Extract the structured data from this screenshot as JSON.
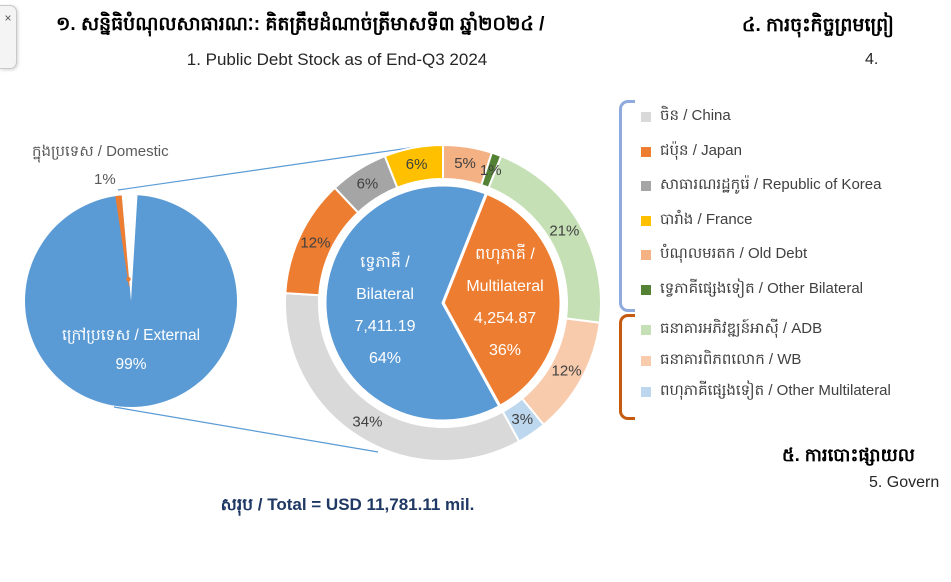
{
  "window": {
    "collapse_tab_icon": "×"
  },
  "header": {
    "title_km": "១. សន្និធិបំណុលសាធារណៈ: គិតត្រឹមដំណាច់ត្រីមាសទី៣ ឆ្នាំ២០២៤ /",
    "title_en": "1. Public Debt Stock as of End-Q3 2024",
    "next_section_km": "៤. ការចុះកិច្ចព្រមព្រៀ",
    "next_section_num": "4."
  },
  "footer": {
    "total_label": "សរុប / Total = USD 11,781.11 mil.",
    "bottom_section_km": "៥. ការបោះផ្សាយល",
    "bottom_section_num": "5. Govern"
  },
  "colors": {
    "callout_blue": "#5B9BD5",
    "ring_label": "#404040",
    "total_text": "#1F3864"
  },
  "chart_data": [
    {
      "type": "pie",
      "name": "debt-by-residency",
      "categories": [
        "ក្រៅប្រទេស / External",
        "ក្នុងប្រទេស / Domestic"
      ],
      "values": [
        99,
        1
      ],
      "unit": "%",
      "colors": [
        "#5B9BD5",
        "#ED7D31"
      ],
      "labels": {
        "external": "ក្រៅប្រទេស / External",
        "external_pct": "99%",
        "domestic": "ក្នុងប្រទេស / Domestic",
        "domestic_pct": "1%"
      }
    },
    {
      "type": "pie",
      "subtype": "donut",
      "name": "external-debt-by-creditor",
      "total": "USD 11,781.11 mil.",
      "inner_series": {
        "name": "creditor-category",
        "start_angle_deg": 21.6,
        "slices": [
          {
            "label_km": "ពហុភាគី /",
            "label_en": "Multilateral",
            "value_usd_mil": "4,254.87",
            "pct": 36,
            "pct_label": "36%",
            "color": "#ED7D31"
          },
          {
            "label_km": "ទ្វេភាគី /",
            "label_en": "Bilateral",
            "value_usd_mil": "7,411.19",
            "pct": 64,
            "pct_label": "64%",
            "color": "#5B9BD5"
          }
        ]
      },
      "outer_series": {
        "name": "creditor",
        "start_angle_deg": 0,
        "slices": [
          {
            "label": "បំណុលមរតក / Old Debt",
            "pct": 5,
            "color": "#F4B183"
          },
          {
            "label": "ទ្វេភាគីផ្សេងទៀត / Other Bilateral",
            "pct": 1,
            "color": "#548235"
          },
          {
            "label": "ធនាគារអភិវឌ្ឍន៍អាស៊ី / ADB",
            "pct": 21,
            "color": "#C5E0B4"
          },
          {
            "label": "ធនាគារពិភពលោក / WB",
            "pct": 12,
            "color": "#F8CBAD"
          },
          {
            "label": "ពហុភាគីផ្សេងទៀត / Other Multilateral",
            "pct": 3,
            "color": "#BDD7EE"
          },
          {
            "label": "ចិន / China",
            "pct": 34,
            "color": "#D9D9D9"
          },
          {
            "label": "ជប៉ុន / Japan",
            "pct": 12,
            "color": "#ED7D31"
          },
          {
            "label": "សាធារណរដ្ឋកូរ៉េ / Republic of Korea",
            "pct": 6,
            "color": "#A5A5A5"
          },
          {
            "label": "បារាំង / France",
            "pct": 6,
            "color": "#FFC000"
          }
        ]
      }
    }
  ],
  "legend": {
    "groups": [
      {
        "name": "Bilateral group",
        "bracket_color": "#8FAADC",
        "items": [
          {
            "label": "ចិន / China",
            "color": "#D9D9D9"
          },
          {
            "label": "ជប៉ុន / Japan",
            "color": "#ED7D31"
          },
          {
            "label": "សាធារណរដ្ឋកូរ៉េ / Republic of Korea",
            "color": "#A5A5A5"
          },
          {
            "label": "បារាំង / France",
            "color": "#FFC000"
          },
          {
            "label": "បំណុលមរតក / Old Debt",
            "color": "#F4B183"
          },
          {
            "label": "ទ្វេភាគីផ្សេងទៀត / Other Bilateral",
            "color": "#548235"
          }
        ]
      },
      {
        "name": "Multilateral group",
        "bracket_color": "#C55A11",
        "items": [
          {
            "label": "ធនាគារអភិវឌ្ឍន៍អាស៊ី / ADB",
            "color": "#C5E0B4"
          },
          {
            "label": "ធនាគារពិភពលោក / WB",
            "color": "#F8CBAD"
          },
          {
            "label": "ពហុភាគីផ្សេងទៀត / Other Multilateral",
            "color": "#BDD7EE"
          }
        ]
      }
    ]
  }
}
